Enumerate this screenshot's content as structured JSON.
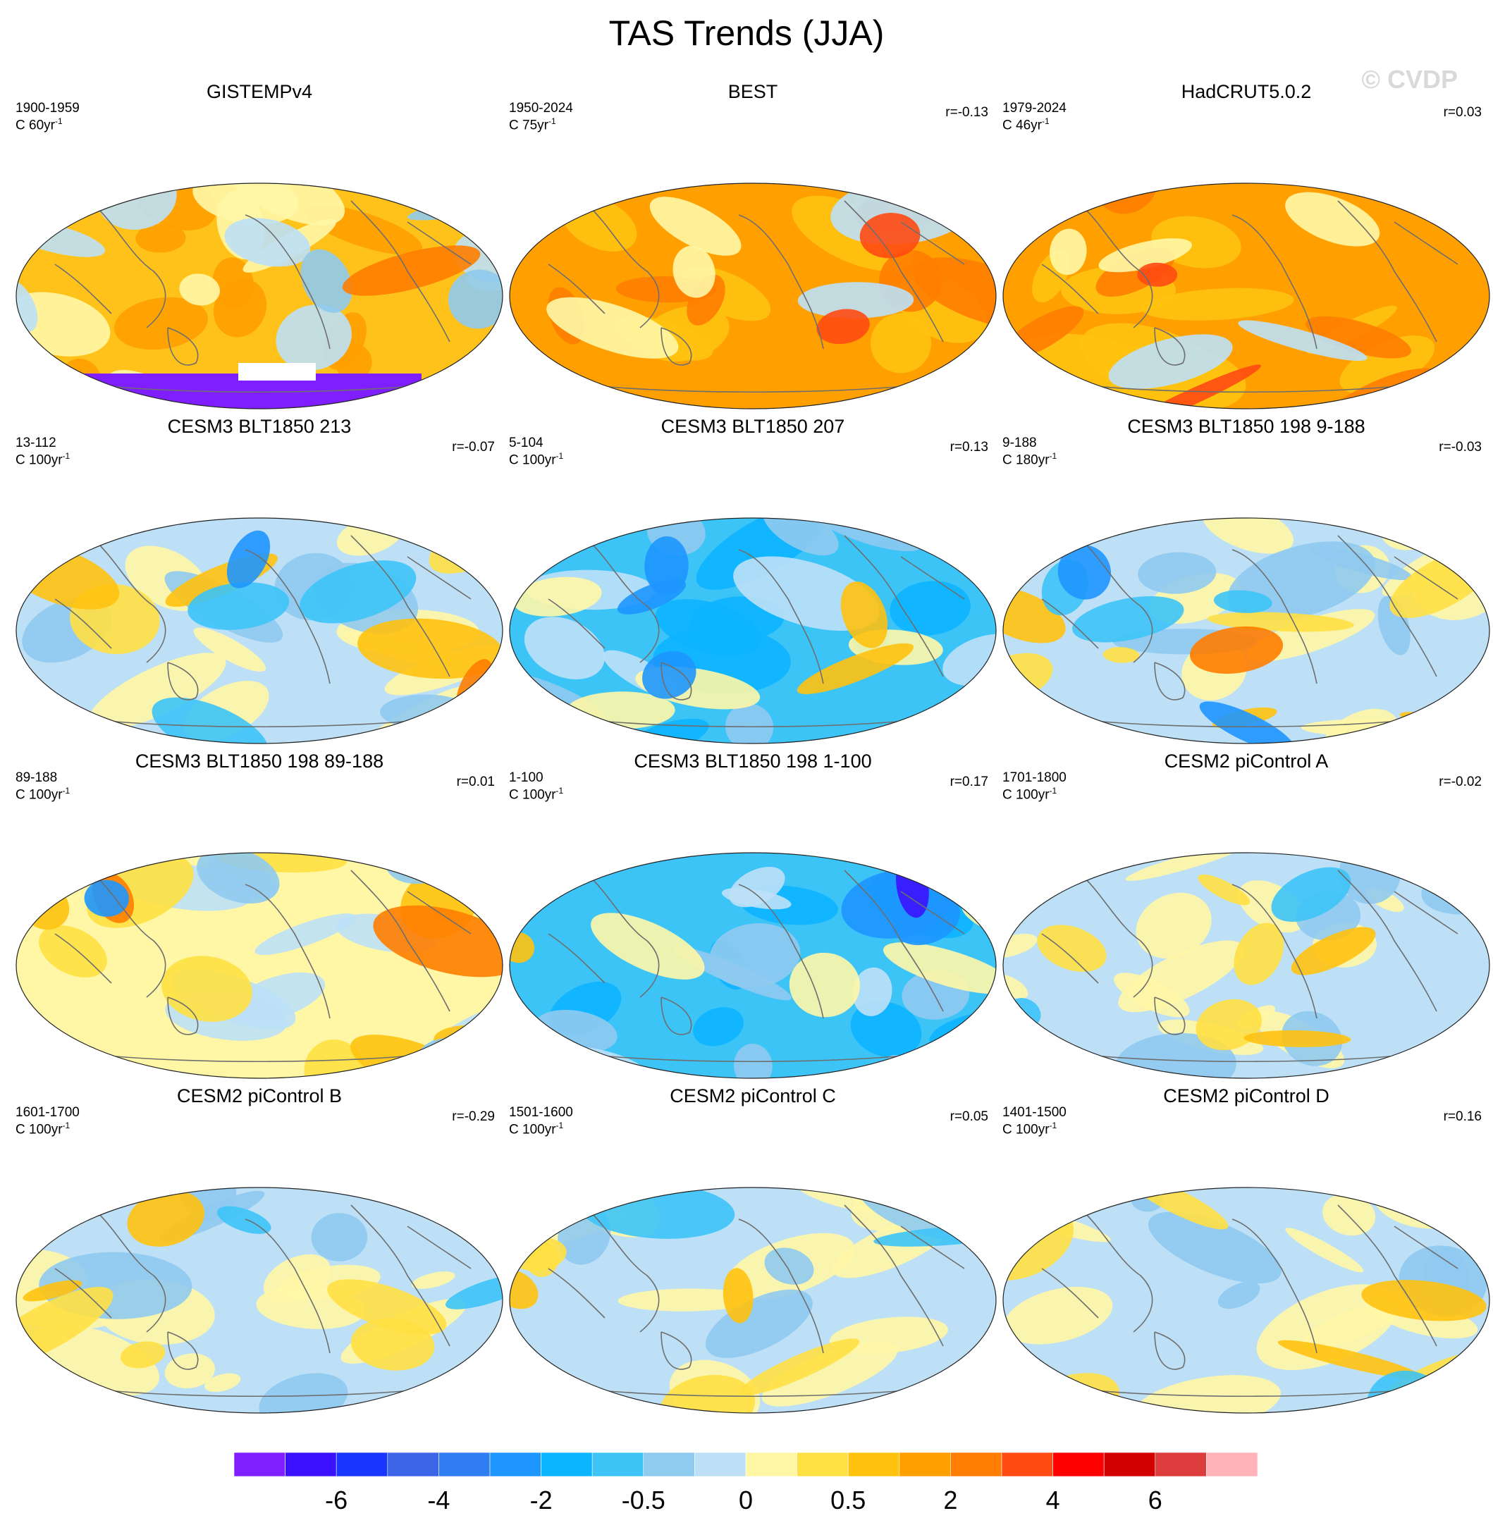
{
  "title": "TAS Trends (JJA)",
  "watermark": "© CVDP",
  "panels": [
    {
      "title": "GISTEMPv4",
      "period": "1900-1959",
      "units_base": "C 60yr",
      "units_exp": "-1",
      "corr": "",
      "palette": "obs_warm",
      "antarctic_missing": true
    },
    {
      "title": "BEST",
      "period": "1950-2024",
      "units_base": "C 75yr",
      "units_exp": "-1",
      "corr": "r=-0.13",
      "palette": "obs_hot"
    },
    {
      "title": "HadCRUT5.0.2",
      "period": "1979-2024",
      "units_base": "C 46yr",
      "units_exp": "-1",
      "corr": "r=0.03",
      "palette": "obs_hot"
    },
    {
      "title": "CESM3 BLT1850 213",
      "period": "13-112",
      "units_base": "C 100yr",
      "units_exp": "-1",
      "corr": "r=-0.07",
      "palette": "mixed_cool"
    },
    {
      "title": "CESM3 BLT1850 207",
      "period": "5-104",
      "units_base": "C 100yr",
      "units_exp": "-1",
      "corr": "r=0.13",
      "palette": "cold"
    },
    {
      "title": "CESM3 BLT1850 198 9-188",
      "period": "9-188",
      "units_base": "C 180yr",
      "units_exp": "-1",
      "corr": "r=-0.03",
      "palette": "mixed_cool"
    },
    {
      "title": "CESM3 BLT1850 198 89-188",
      "period": "89-188",
      "units_base": "C 100yr",
      "units_exp": "-1",
      "corr": "r=0.01",
      "palette": "mixed_warm"
    },
    {
      "title": "CESM3 BLT1850 198 1-100",
      "period": "1-100",
      "units_base": "C 100yr",
      "units_exp": "-1",
      "corr": "r=0.17",
      "palette": "cold"
    },
    {
      "title": "CESM2 piControl A",
      "period": "1701-1800",
      "units_base": "C 100yr",
      "units_exp": "-1",
      "corr": "r=-0.02",
      "palette": "mixed_pale"
    },
    {
      "title": "CESM2 piControl B",
      "period": "1601-1700",
      "units_base": "C 100yr",
      "units_exp": "-1",
      "corr": "r=-0.29",
      "palette": "mixed_pale"
    },
    {
      "title": "CESM2 piControl C",
      "period": "1501-1600",
      "units_base": "C 100yr",
      "units_exp": "-1",
      "corr": "r=0.05",
      "palette": "mixed_pale"
    },
    {
      "title": "CESM2 piControl D",
      "period": "1401-1500",
      "units_base": "C 100yr",
      "units_exp": "-1",
      "corr": "r=0.16",
      "palette": "mixed_pale"
    }
  ],
  "colorbar": {
    "colors": [
      "#7f1fff",
      "#3b12ff",
      "#1736ff",
      "#3c64e6",
      "#2f7df0",
      "#1e96ff",
      "#0db4ff",
      "#3dc4f7",
      "#8fcaef",
      "#bde0f7",
      "#fff7a6",
      "#ffe043",
      "#ffc20f",
      "#ffa000",
      "#ff7d00",
      "#ff4a12",
      "#ff0000",
      "#d20000",
      "#dc3c3c",
      "#ffb2b8"
    ],
    "labels": [
      "-6",
      "-4",
      "-2",
      "-0.5",
      "0",
      "0.5",
      "2",
      "4",
      "6"
    ],
    "label_boundaries": [
      2,
      4,
      6,
      8,
      10,
      12,
      14,
      16,
      18
    ]
  }
}
